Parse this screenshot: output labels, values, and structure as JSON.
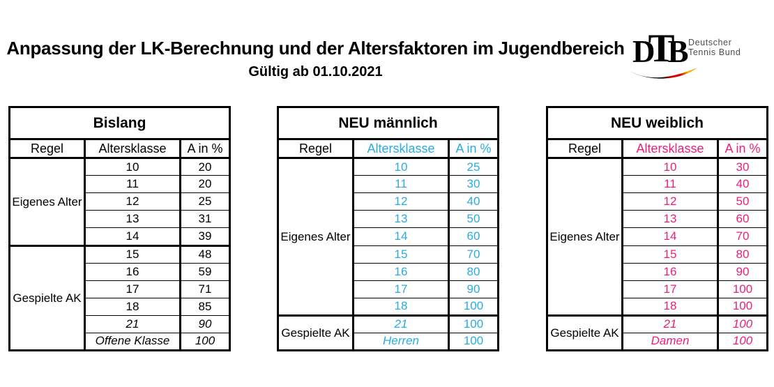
{
  "page": {
    "title": "Anpassung der LK-Berechnung und der Altersfaktoren im Jugendbereich",
    "subtitle": "Gültig ab 01.10.2021"
  },
  "logo": {
    "letter_d": "D",
    "letter_t": "T",
    "letter_b": "B",
    "name_line1": "Deutscher",
    "name_line2": "Tennis Bund",
    "colors": {
      "black": "#000000",
      "red": "#d10000",
      "gold": "#f2a900",
      "text": "#4d4d4f"
    }
  },
  "tables": [
    {
      "id": "bislang",
      "title": "Bislang",
      "accent": "#000000",
      "col_headers": [
        "Regel",
        "Altersklasse",
        "A in %"
      ],
      "groups": [
        {
          "label": "Eigenes Alter",
          "rows": [
            {
              "ak": "10",
              "a": "20"
            },
            {
              "ak": "11",
              "a": "20"
            },
            {
              "ak": "12",
              "a": "25"
            },
            {
              "ak": "13",
              "a": "31"
            },
            {
              "ak": "14",
              "a": "39"
            }
          ]
        },
        {
          "label": "Gespielte AK",
          "rows": [
            {
              "ak": "15",
              "a": "48"
            },
            {
              "ak": "16",
              "a": "59"
            },
            {
              "ak": "17",
              "a": "71"
            },
            {
              "ak": "18",
              "a": "85"
            },
            {
              "ak": "21",
              "a": "90",
              "ak_italic": true,
              "a_italic": true
            },
            {
              "ak": "Offene Klasse",
              "a": "100",
              "ak_italic": true,
              "a_italic": true
            }
          ]
        }
      ]
    },
    {
      "id": "neu-maennlich",
      "title": "NEU männlich",
      "accent": "#29ABE2",
      "col_headers": [
        "Regel",
        "Altersklasse",
        "A in %"
      ],
      "groups": [
        {
          "label": "Eigenes Alter",
          "rows": [
            {
              "ak": "10",
              "a": "25"
            },
            {
              "ak": "11",
              "a": "30"
            },
            {
              "ak": "12",
              "a": "40"
            },
            {
              "ak": "13",
              "a": "50"
            },
            {
              "ak": "14",
              "a": "60"
            },
            {
              "ak": "15",
              "a": "70"
            },
            {
              "ak": "16",
              "a": "80"
            },
            {
              "ak": "17",
              "a": "90"
            },
            {
              "ak": "18",
              "a": "100"
            }
          ]
        },
        {
          "label": "Gespielte AK",
          "rows": [
            {
              "ak": "21",
              "a": "100",
              "ak_italic": true
            },
            {
              "ak": "Herren",
              "a": "100",
              "ak_italic": true
            }
          ]
        }
      ]
    },
    {
      "id": "neu-weiblich",
      "title": "NEU weiblich",
      "accent": "#ED1E79",
      "col_headers": [
        "Regel",
        "Altersklasse",
        "A in %"
      ],
      "groups": [
        {
          "label": "Eigenes Alter",
          "rows": [
            {
              "ak": "10",
              "a": "30"
            },
            {
              "ak": "11",
              "a": "40"
            },
            {
              "ak": "12",
              "a": "50"
            },
            {
              "ak": "13",
              "a": "60"
            },
            {
              "ak": "14",
              "a": "70"
            },
            {
              "ak": "15",
              "a": "80"
            },
            {
              "ak": "16",
              "a": "90"
            },
            {
              "ak": "17",
              "a": "100"
            },
            {
              "ak": "18",
              "a": "100"
            }
          ]
        },
        {
          "label": "Gespielte AK",
          "rows": [
            {
              "ak": "21",
              "a": "100",
              "ak_italic": true,
              "a_italic": true
            },
            {
              "ak": "Damen",
              "a": "100",
              "ak_italic": true,
              "a_italic": true
            }
          ]
        }
      ]
    }
  ]
}
